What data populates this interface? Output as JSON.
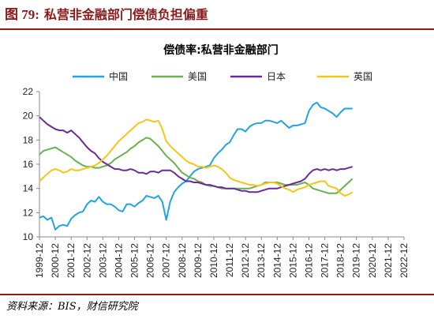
{
  "figure": {
    "title_number": "图 79:",
    "title_text": "私营非金融部门偿债负担偏重",
    "source": "资料来源：BIS，财信研究院"
  },
  "chart_data": {
    "type": "line",
    "title": "偿债率:私营非金融部门",
    "xlabel": "",
    "ylabel": "",
    "ylim": [
      10,
      22
    ],
    "yticks": [
      10,
      12,
      14,
      16,
      18,
      20,
      22
    ],
    "xticks": [
      "1999-12",
      "2000-12",
      "2001-12",
      "2002-12",
      "2003-12",
      "2004-12",
      "2005-12",
      "2006-12",
      "2007-12",
      "2008-12",
      "2009-12",
      "2010-12",
      "2011-12",
      "2012-12",
      "2013-12",
      "2014-12",
      "2015-12",
      "2016-12",
      "2017-12",
      "2018-12",
      "2019-12",
      "2020-12",
      "2021-12",
      "2022-12"
    ],
    "x_start": "1999-12",
    "frequency": "quarterly",
    "grid": false,
    "legend_position": "top",
    "series": [
      {
        "name": "中国",
        "color": "#1fa5e0",
        "values": [
          11.6,
          11.7,
          11.4,
          11.6,
          10.6,
          10.9,
          11.0,
          10.9,
          11.5,
          11.8,
          12.0,
          12.1,
          12.7,
          13.0,
          12.9,
          13.3,
          12.9,
          12.7,
          12.7,
          12.5,
          12.2,
          12.1,
          12.7,
          12.7,
          12.5,
          12.8,
          13.0,
          13.4,
          13.3,
          13.2,
          13.4,
          12.9,
          11.4,
          12.9,
          13.7,
          14.1,
          14.4,
          14.6,
          15.0,
          15.4,
          15.6,
          15.7,
          15.8,
          15.9,
          16.5,
          16.9,
          17.2,
          17.6,
          17.8,
          18.4,
          18.9,
          18.9,
          18.7,
          19.1,
          19.3,
          19.4,
          19.4,
          19.6,
          19.6,
          19.5,
          19.4,
          19.6,
          19.3,
          19.0,
          19.2,
          19.2,
          19.3,
          19.4,
          20.4,
          20.9,
          21.1,
          20.7,
          20.6,
          20.4,
          20.2,
          19.9,
          20.3,
          20.6,
          20.6,
          20.6
        ]
      },
      {
        "name": "美国",
        "color": "#6ab04c",
        "values": [
          16.8,
          17.1,
          17.2,
          17.3,
          17.4,
          17.2,
          17.0,
          16.8,
          16.6,
          16.3,
          16.1,
          15.9,
          15.8,
          15.8,
          15.7,
          15.7,
          15.8,
          15.9,
          16.1,
          16.4,
          16.6,
          16.8,
          17.0,
          17.3,
          17.5,
          17.8,
          18.0,
          18.2,
          18.1,
          17.8,
          17.5,
          17.1,
          16.7,
          16.4,
          16.1,
          15.7,
          15.3,
          15.1,
          14.9,
          14.8,
          14.6,
          14.5,
          14.3,
          14.2,
          14.2,
          14.1,
          14.0,
          14.0,
          14.0,
          14.0,
          14.0,
          14.0,
          14.0,
          14.0,
          14.1,
          14.2,
          14.3,
          14.5,
          14.5,
          14.5,
          14.5,
          14.4,
          14.3,
          14.3,
          14.3,
          14.3,
          14.4,
          14.5,
          14.3,
          14.0,
          13.9,
          13.8,
          13.7,
          13.6,
          13.6,
          13.6,
          13.9,
          14.2,
          14.5,
          14.8
        ]
      },
      {
        "name": "日本",
        "color": "#6a2a9a",
        "values": [
          19.9,
          19.6,
          19.3,
          19.1,
          18.9,
          18.8,
          18.8,
          18.6,
          18.8,
          18.5,
          18.2,
          17.8,
          17.4,
          17.1,
          16.9,
          16.5,
          16.2,
          16.0,
          15.8,
          15.6,
          15.6,
          15.5,
          15.5,
          15.6,
          15.5,
          15.3,
          15.3,
          15.2,
          15.4,
          15.4,
          15.3,
          15.5,
          15.5,
          15.5,
          15.3,
          15.0,
          14.8,
          14.6,
          14.6,
          14.5,
          14.5,
          14.4,
          14.3,
          14.3,
          14.2,
          14.1,
          14.1,
          14.0,
          14.0,
          14.0,
          13.9,
          13.8,
          13.8,
          13.7,
          13.7,
          13.7,
          13.8,
          13.9,
          14.0,
          14.0,
          14.0,
          14.1,
          14.2,
          14.3,
          14.4,
          14.5,
          14.6,
          14.8,
          15.2,
          15.5,
          15.6,
          15.5,
          15.6,
          15.5,
          15.6,
          15.5,
          15.6,
          15.6,
          15.7,
          15.8
        ]
      },
      {
        "name": "英国",
        "color": "#f5c518",
        "values": [
          14.6,
          14.9,
          15.2,
          15.5,
          15.6,
          15.5,
          15.3,
          15.4,
          15.6,
          15.5,
          15.5,
          15.6,
          15.7,
          15.8,
          15.9,
          16.1,
          16.4,
          16.7,
          17.1,
          17.5,
          17.9,
          18.2,
          18.5,
          18.8,
          19.1,
          19.4,
          19.5,
          19.7,
          19.6,
          19.5,
          19.6,
          18.9,
          17.9,
          17.5,
          17.2,
          16.9,
          16.6,
          16.3,
          16.1,
          16.0,
          15.8,
          15.8,
          15.7,
          15.8,
          15.9,
          15.8,
          15.6,
          15.3,
          14.9,
          14.7,
          14.6,
          14.5,
          14.4,
          14.3,
          14.3,
          14.2,
          14.3,
          14.4,
          14.5,
          14.5,
          14.4,
          14.2,
          14.0,
          13.9,
          13.7,
          13.9,
          14.0,
          14.1,
          14.3,
          14.4,
          14.5,
          14.6,
          14.6,
          14.2,
          14.1,
          14.0,
          13.6,
          13.4,
          13.5,
          13.7
        ]
      }
    ]
  }
}
